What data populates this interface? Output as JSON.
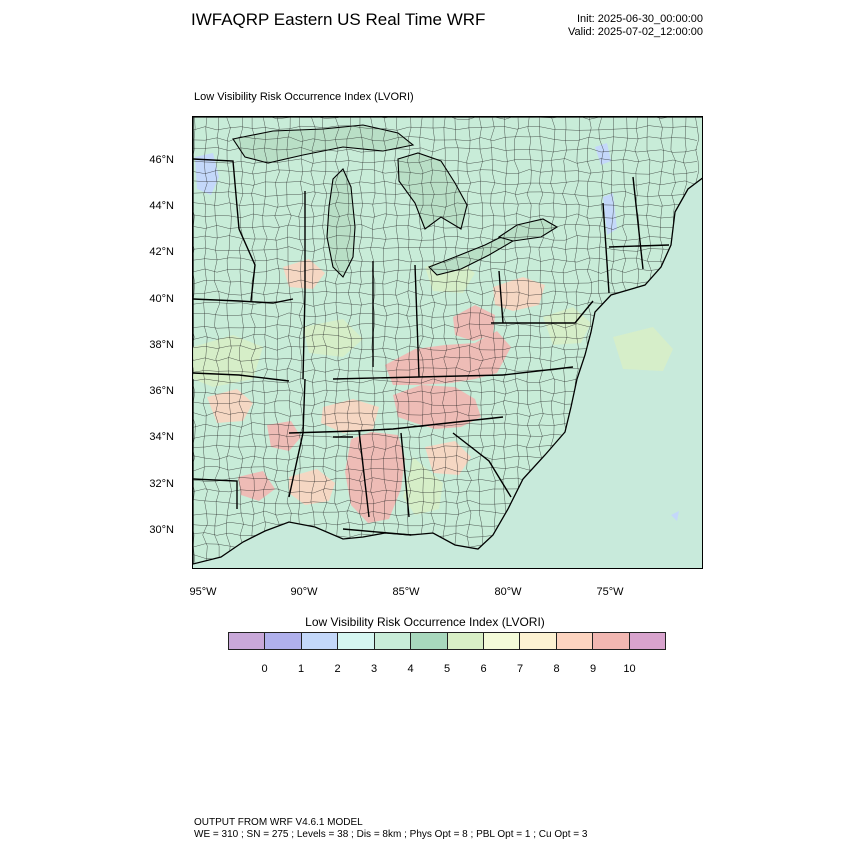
{
  "title": "IWFAQRP Eastern US Real Time WRF",
  "init": "Init: 2025-06-30_00:00:00",
  "valid": "Valid: 2025-07-02_12:00:00",
  "field_label": "Low Visibility Risk Occurrence Index   (LVORI)",
  "lat_labels": [
    "46°N",
    "44°N",
    "42°N",
    "40°N",
    "38°N",
    "36°N",
    "34°N",
    "32°N",
    "30°N"
  ],
  "lon_labels": [
    "95°W",
    "90°W",
    "85°W",
    "80°W",
    "75°W"
  ],
  "colorbar": {
    "title": "Low Visibility Risk Occurrence Index  (LVORI)",
    "labels": [
      "0",
      "1",
      "2",
      "3",
      "4",
      "5",
      "6",
      "7",
      "8",
      "9",
      "10"
    ],
    "colors": [
      "#c9a8d9",
      "#b0b0ec",
      "#c4d8fa",
      "#d5f6f1",
      "#c8ecd8",
      "#a8d8bd",
      "#d8efc6",
      "#f4fbd9",
      "#fdf2d2",
      "#fdd4c0",
      "#f2b7b2",
      "#d8a3cd"
    ]
  },
  "map_colors": {
    "ocean": "#c8eadb",
    "lake": "#b9dfc6",
    "land": "#c8ecd8",
    "high_risk": "#f2b7b2",
    "moderate_risk": "#fdd4c0",
    "low_risk": "#d8efc6",
    "very_low": "#c4d8fa",
    "outline": "#000000"
  },
  "footer": {
    "line1": "OUTPUT FROM WRF V4.6.1 MODEL",
    "line2": "WE = 310 ; SN = 275 ; Levels = 38 ; Dis = 8km ; Phys Opt = 8 ; PBL Opt = 1 ; Cu Opt = 3"
  }
}
